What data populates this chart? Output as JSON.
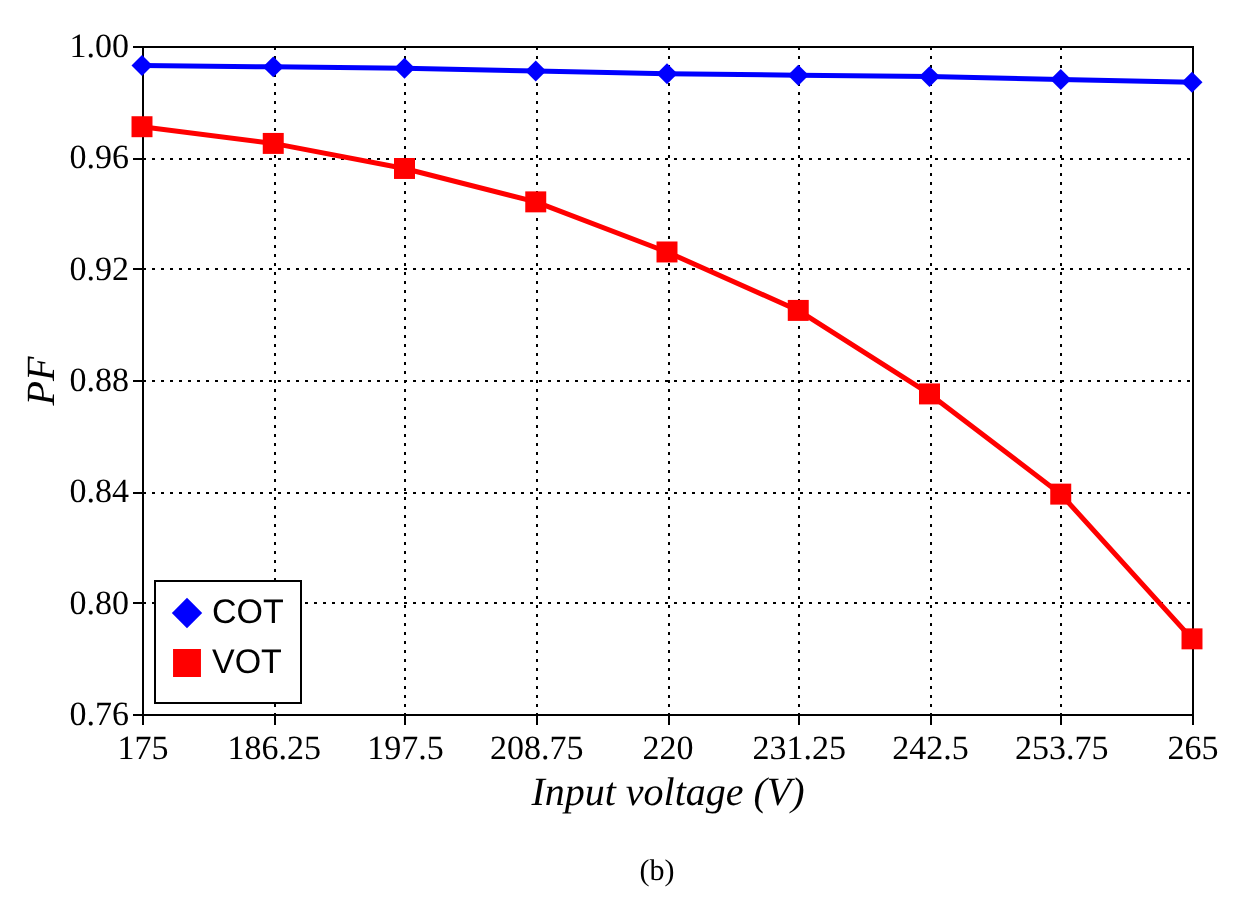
{
  "chart_data": {
    "type": "line",
    "xlabel": "Input voltage (V)",
    "ylabel": "PF",
    "annotations": [
      "(b)"
    ],
    "x": [
      175,
      186.25,
      197.5,
      208.75,
      220,
      231.25,
      242.5,
      253.75,
      265
    ],
    "series": [
      {
        "name": "COT",
        "color": "#0000ff",
        "marker": "diamond",
        "values": [
          0.993,
          0.9925,
          0.992,
          0.991,
          0.99,
          0.9895,
          0.989,
          0.988,
          0.987
        ]
      },
      {
        "name": "VOT",
        "color": "#ff0000",
        "marker": "square",
        "values": [
          0.971,
          0.965,
          0.956,
          0.944,
          0.926,
          0.905,
          0.875,
          0.839,
          0.787
        ]
      }
    ],
    "xlim": [
      175,
      265
    ],
    "xticks": [
      175,
      186.25,
      197.5,
      208.75,
      220,
      231.25,
      242.5,
      253.75,
      265
    ],
    "ylim": [
      0.76,
      1.0
    ],
    "yticks": [
      {
        "value": 0.76,
        "label": "0.76"
      },
      {
        "value": 0.8,
        "label": "0.80"
      },
      {
        "value": 0.84,
        "label": "0.84"
      },
      {
        "value": 0.88,
        "label": "0.88"
      },
      {
        "value": 0.92,
        "label": "0.92"
      },
      {
        "value": 0.96,
        "label": "0.96"
      },
      {
        "value": 1.0,
        "label": "1.00"
      }
    ],
    "grid": true,
    "legend": "bottom left",
    "line_style": "solid"
  }
}
